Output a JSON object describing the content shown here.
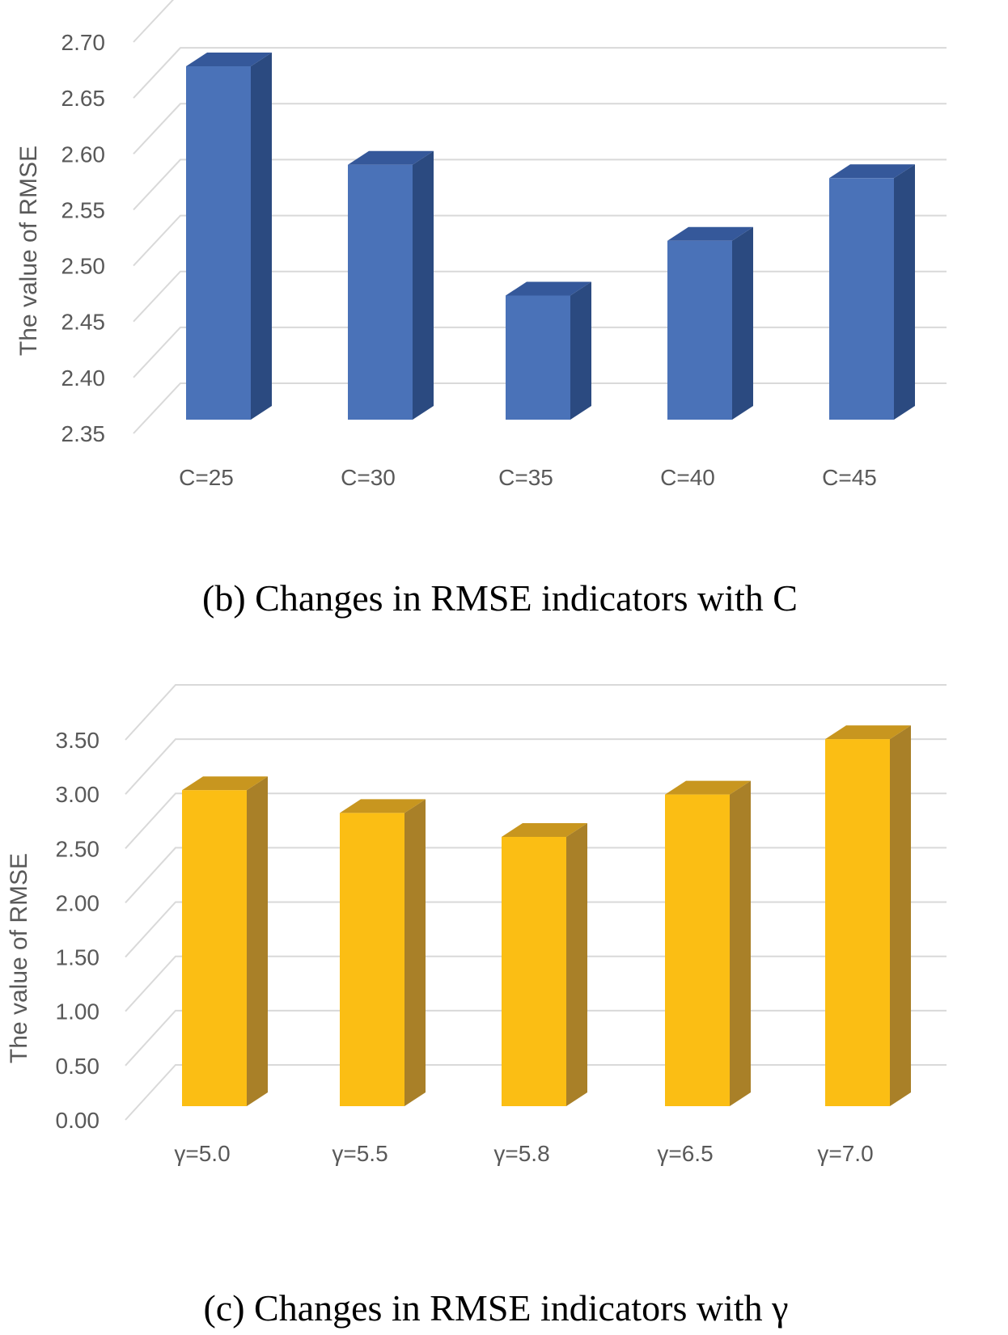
{
  "chart_data": [
    {
      "type": "bar",
      "style": "3d-column",
      "title": "(b) Changes in RMSE indicators with C",
      "xlabel": "",
      "ylabel": "The value of RMSE",
      "categories": [
        "C=25",
        "C=30",
        "C=35",
        "C=40",
        "C=45"
      ],
      "values": [
        2.666,
        2.578,
        2.461,
        2.51,
        2.566
      ],
      "ylim": [
        2.35,
        2.7
      ],
      "yticks": [
        "2.35",
        "2.40",
        "2.45",
        "2.50",
        "2.55",
        "2.60",
        "2.65",
        "2.70"
      ],
      "grid": true,
      "colors": {
        "front": "#4a72b8",
        "side": "#2b4a80",
        "top": "#35589a"
      }
    },
    {
      "type": "bar",
      "style": "3d-column",
      "title": "(c) Changes in RMSE indicators with γ",
      "xlabel": "",
      "ylabel": "The value of RMSE",
      "categories": [
        "γ=5.0",
        "γ=5.5",
        "γ=5.8",
        "γ=6.5",
        "γ=7.0"
      ],
      "values": [
        2.91,
        2.7,
        2.48,
        2.87,
        3.38
      ],
      "ylim": [
        0.0,
        3.5
      ],
      "yticks": [
        "0.00",
        "0.50",
        "1.00",
        "1.50",
        "2.00",
        "2.50",
        "3.00",
        "3.50"
      ],
      "grid": true,
      "colors": {
        "front": "#fbbe14",
        "side": "#a98028",
        "top": "#c8961f"
      }
    }
  ]
}
